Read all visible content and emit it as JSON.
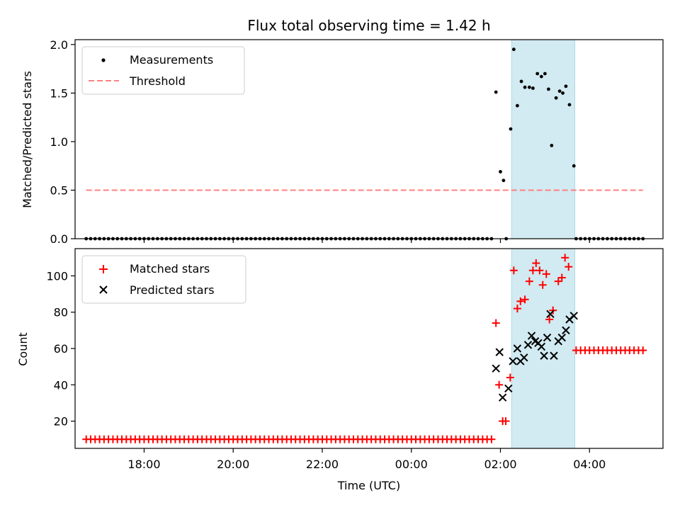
{
  "chart_data": [
    {
      "type": "scatter",
      "title": "Flux total observing time = 1.42 h",
      "xlabel": "",
      "ylabel": "Matched/Predicted stars",
      "xlim_hours": [
        16.45,
        29.65
      ],
      "ylim": [
        0,
        2.05
      ],
      "yticks": [
        "0.0",
        "0.5",
        "1.0",
        "1.5",
        "2.0"
      ],
      "ytick_values": [
        0,
        0.5,
        1.0,
        1.5,
        2.0
      ],
      "legend": {
        "position": "top-left",
        "entries": [
          "Measurements",
          "Threshold"
        ]
      },
      "highlight_span_hours": [
        26.25,
        27.67
      ],
      "highlight_color": "#add8e6",
      "threshold": {
        "name": "Threshold",
        "value": 0.5,
        "x_range_hours": [
          16.7,
          29.2
        ],
        "color": "#ff8080",
        "style": "dashed"
      },
      "series": [
        {
          "name": "Measurements",
          "color": "#000000",
          "marker": "dot",
          "zero_run": {
            "start": 16.7,
            "end": 25.85,
            "step": 0.1,
            "value": 0
          },
          "zero_run_tail": {
            "start": 27.7,
            "end": 29.2,
            "step": 0.1,
            "value": 0
          },
          "points": [
            [
              25.9,
              1.51
            ],
            [
              26.0,
              0.69
            ],
            [
              26.07,
              0.6
            ],
            [
              26.13,
              0.0
            ],
            [
              26.23,
              1.13
            ],
            [
              26.3,
              1.95
            ],
            [
              26.38,
              1.37
            ],
            [
              26.47,
              1.62
            ],
            [
              26.55,
              1.56
            ],
            [
              26.65,
              1.56
            ],
            [
              26.73,
              1.55
            ],
            [
              26.83,
              1.7
            ],
            [
              26.92,
              1.67
            ],
            [
              27.0,
              1.7
            ],
            [
              27.08,
              1.54
            ],
            [
              27.15,
              0.96
            ],
            [
              27.25,
              1.45
            ],
            [
              27.33,
              1.52
            ],
            [
              27.4,
              1.5
            ],
            [
              27.47,
              1.57
            ],
            [
              27.55,
              1.38
            ],
            [
              27.65,
              0.75
            ]
          ]
        }
      ]
    },
    {
      "type": "scatter",
      "title": "",
      "xlabel": "Time (UTC)",
      "ylabel": "Count",
      "xlim_hours": [
        16.45,
        29.65
      ],
      "ylim": [
        5,
        115
      ],
      "yticks": [
        "20",
        "40",
        "60",
        "80",
        "100"
      ],
      "ytick_values": [
        20,
        40,
        60,
        80,
        100
      ],
      "xticks": [
        "18:00",
        "20:00",
        "22:00",
        "00:00",
        "02:00",
        "04:00"
      ],
      "xtick_values_hours": [
        18,
        20,
        22,
        24,
        26,
        28
      ],
      "legend": {
        "position": "top-left",
        "entries": [
          "Matched stars",
          "Predicted stars"
        ]
      },
      "highlight_span_hours": [
        26.25,
        27.67
      ],
      "highlight_color": "#add8e6",
      "series": [
        {
          "name": "Matched stars",
          "color": "#ff0000",
          "marker": "plus",
          "const_run": {
            "start": 16.7,
            "end": 25.85,
            "step": 0.1,
            "value": 10
          },
          "const_run_tail": {
            "start": 27.7,
            "end": 29.2,
            "step": 0.1,
            "value": 59
          },
          "points": [
            [
              25.9,
              74
            ],
            [
              25.97,
              40
            ],
            [
              26.05,
              20
            ],
            [
              26.12,
              20
            ],
            [
              26.22,
              44
            ],
            [
              26.3,
              103
            ],
            [
              26.38,
              82
            ],
            [
              26.45,
              86
            ],
            [
              26.55,
              87
            ],
            [
              26.65,
              97
            ],
            [
              26.73,
              103
            ],
            [
              26.8,
              107
            ],
            [
              26.88,
              103
            ],
            [
              26.95,
              95
            ],
            [
              27.03,
              101
            ],
            [
              27.1,
              76
            ],
            [
              27.18,
              81
            ],
            [
              27.3,
              97
            ],
            [
              27.38,
              99
            ],
            [
              27.45,
              110
            ],
            [
              27.53,
              105
            ]
          ]
        },
        {
          "name": "Predicted stars",
          "color": "#000000",
          "marker": "x",
          "points": [
            [
              25.9,
              49
            ],
            [
              25.98,
              58
            ],
            [
              26.05,
              33
            ],
            [
              26.18,
              38
            ],
            [
              26.28,
              53
            ],
            [
              26.38,
              60
            ],
            [
              26.45,
              53
            ],
            [
              26.53,
              55
            ],
            [
              26.62,
              62
            ],
            [
              26.7,
              67
            ],
            [
              26.78,
              64
            ],
            [
              26.85,
              63
            ],
            [
              26.92,
              61
            ],
            [
              26.98,
              56
            ],
            [
              27.05,
              66
            ],
            [
              27.12,
              79
            ],
            [
              27.2,
              56
            ],
            [
              27.3,
              64
            ],
            [
              27.38,
              66
            ],
            [
              27.47,
              70
            ],
            [
              27.55,
              76
            ],
            [
              27.65,
              78
            ]
          ]
        }
      ]
    }
  ]
}
